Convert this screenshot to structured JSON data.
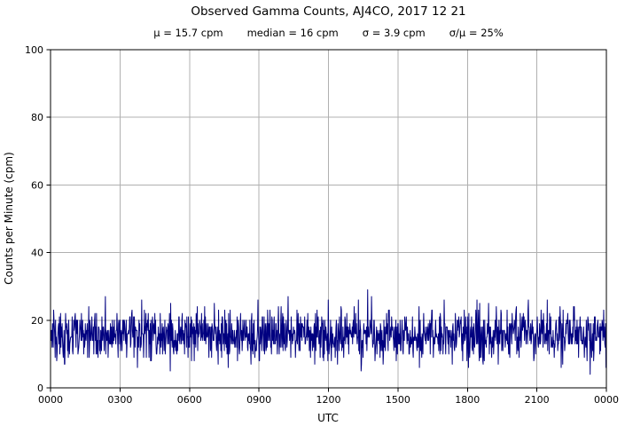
{
  "chart_data": {
    "type": "line",
    "title": "Observed Gamma Counts, AJ4CO, 2017 12 21",
    "stats": [
      "μ = 15.7 cpm",
      "median = 16 cpm",
      "σ = 3.9 cpm",
      "σ/μ = 25%"
    ],
    "xlabel": "UTC",
    "ylabel": "Counts per Minute (cpm)",
    "ylim": [
      0,
      100
    ],
    "yticks": [
      0,
      20,
      40,
      60,
      80,
      100
    ],
    "xtick_labels": [
      "0000",
      "0300",
      "0600",
      "0900",
      "1200",
      "1500",
      "1800",
      "2100",
      "0000"
    ],
    "grid": true,
    "grid_color": "#b0b0b0",
    "axis_color": "#000000",
    "background": "#ffffff",
    "series": [
      {
        "name": "observed gamma counts",
        "color": "#000080",
        "points_per_day": 1440,
        "summary": {
          "mean_cpm": 15.7,
          "median_cpm": 16,
          "sigma_cpm": 3.9,
          "sigma_over_mean_pct": 25,
          "min_cpm_approx": 4,
          "max_cpm_approx": 32
        },
        "synthetic": {
          "seed": 20171221,
          "n": 1440,
          "clamp": [
            4,
            32
          ]
        }
      }
    ]
  }
}
